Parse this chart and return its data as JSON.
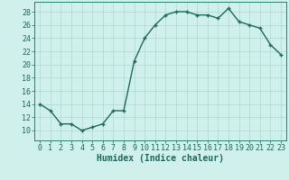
{
  "x": [
    0,
    1,
    2,
    3,
    4,
    5,
    6,
    7,
    8,
    9,
    10,
    11,
    12,
    13,
    14,
    15,
    16,
    17,
    18,
    19,
    20,
    21,
    22,
    23
  ],
  "y": [
    14,
    13,
    11,
    11,
    10,
    10.5,
    11,
    13,
    13,
    20.5,
    24,
    26,
    27.5,
    28,
    28,
    27.5,
    27.5,
    27,
    28.5,
    26.5,
    26,
    25.5,
    23,
    21.5
  ],
  "line_color": "#1a6b5a",
  "marker_color": "#1a6b5a",
  "bg_color": "#cff0eb",
  "grid_color": "#b0d8d0",
  "xlabel": "Humidex (Indice chaleur)",
  "xlim": [
    -0.5,
    23.5
  ],
  "ylim": [
    8.5,
    29.5
  ],
  "yticks": [
    10,
    12,
    14,
    16,
    18,
    20,
    22,
    24,
    26,
    28
  ],
  "xticks": [
    0,
    1,
    2,
    3,
    4,
    5,
    6,
    7,
    8,
    9,
    10,
    11,
    12,
    13,
    14,
    15,
    16,
    17,
    18,
    19,
    20,
    21,
    22,
    23
  ],
  "xlabel_fontsize": 7,
  "tick_fontsize": 6,
  "marker_size": 3,
  "line_width": 1.0
}
